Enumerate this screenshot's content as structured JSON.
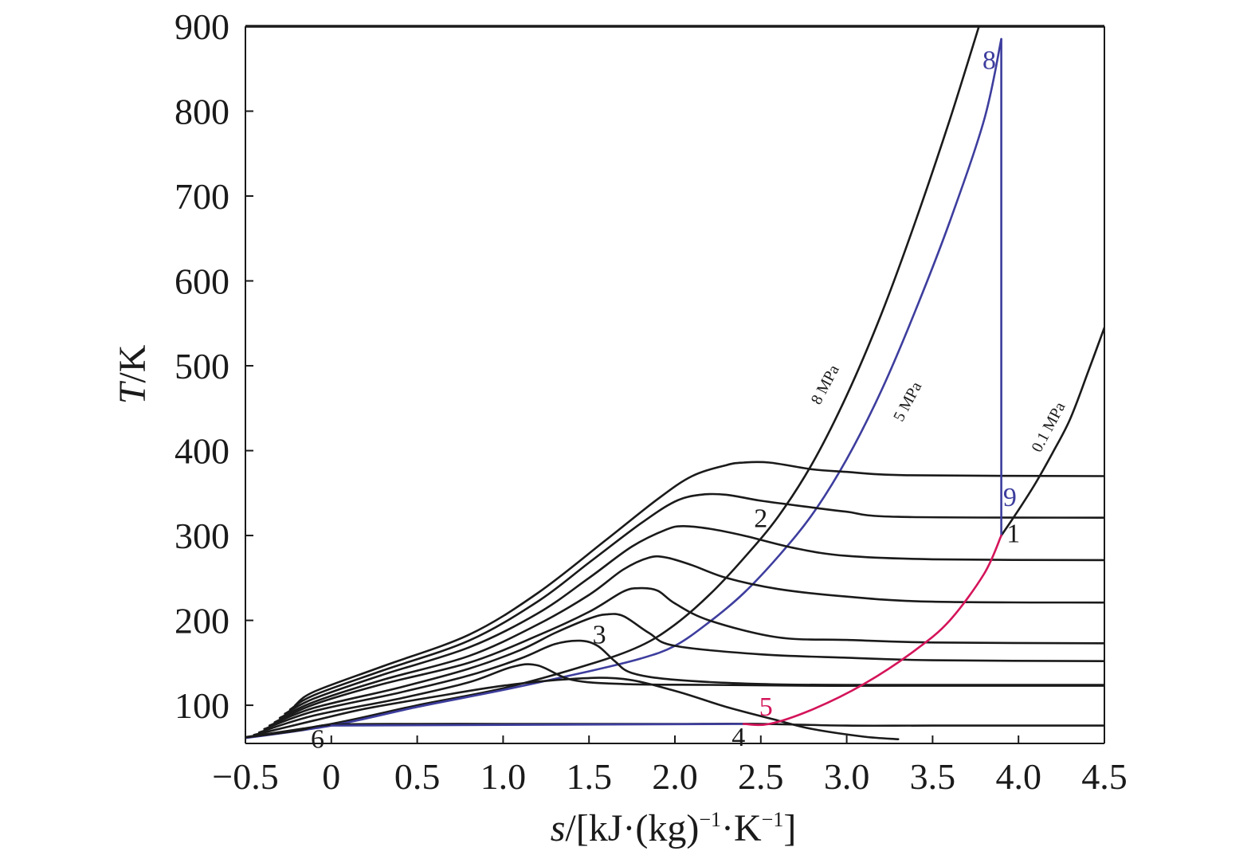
{
  "chart_data": {
    "type": "line",
    "xlabel": {
      "var": "s",
      "rest": "/[kJ·(kg)",
      "sup1": "−1",
      "mid": "·K",
      "sup2": "−1",
      "end": "]"
    },
    "ylabel": {
      "var": "T",
      "rest": "/K"
    },
    "xlim": [
      -0.5,
      4.5
    ],
    "ylim": [
      55,
      900
    ],
    "x_ticks": [
      -0.5,
      0,
      0.5,
      1.0,
      1.5,
      2.0,
      2.5,
      3.0,
      3.5,
      4.0,
      4.5
    ],
    "x_tick_labels": [
      "−0.5",
      "0",
      "0.5",
      "1.0",
      "1.5",
      "2.0",
      "2.5",
      "3.0",
      "3.5",
      "4.0",
      "4.5"
    ],
    "y_ticks": [
      100,
      200,
      300,
      400,
      500,
      600,
      700,
      800,
      900
    ],
    "y_tick_labels": [
      "100",
      "200",
      "300",
      "400",
      "500",
      "600",
      "700",
      "800",
      "900"
    ],
    "grid": false,
    "colors": {
      "axis": "#1a1a1a",
      "isotherm": "#1a1a1a",
      "cycle_blue": "#3d3d9e",
      "cycle_red": "#d4145a"
    },
    "series": [
      {
        "name": "8 MPa",
        "color": "#1a1a1a",
        "points": [
          [
            -0.55,
            61
          ],
          [
            0,
            78
          ],
          [
            0.5,
            100
          ],
          [
            1.0,
            120
          ],
          [
            1.5,
            148
          ],
          [
            1.8,
            170
          ],
          [
            2.0,
            195
          ],
          [
            2.2,
            230
          ],
          [
            2.4,
            273
          ],
          [
            2.6,
            322
          ],
          [
            2.8,
            385
          ],
          [
            3.0,
            465
          ],
          [
            3.2,
            560
          ],
          [
            3.4,
            670
          ],
          [
            3.6,
            790
          ],
          [
            3.77,
            900
          ]
        ]
      },
      {
        "name": "5 MPa",
        "color": "#3d3d9e",
        "points": [
          [
            -0.55,
            60
          ],
          [
            0,
            76
          ],
          [
            0.5,
            98
          ],
          [
            1.0,
            118
          ],
          [
            1.5,
            140
          ],
          [
            1.8,
            155
          ],
          [
            2.0,
            170
          ],
          [
            2.2,
            198
          ],
          [
            2.4,
            232
          ],
          [
            2.6,
            275
          ],
          [
            2.8,
            325
          ],
          [
            3.0,
            390
          ],
          [
            3.2,
            470
          ],
          [
            3.4,
            565
          ],
          [
            3.6,
            670
          ],
          [
            3.8,
            790
          ],
          [
            3.9,
            885
          ]
        ]
      },
      {
        "name": "0.1 MPa",
        "color": "#1a1a1a",
        "points": [
          [
            3.9,
            300
          ],
          [
            4.0,
            330
          ],
          [
            4.1,
            362
          ],
          [
            4.2,
            398
          ],
          [
            4.3,
            437
          ],
          [
            4.4,
            490
          ],
          [
            4.5,
            545
          ]
        ]
      },
      {
        "name": "",
        "color": "#1a1a1a",
        "points": [
          [
            -0.5,
            62
          ],
          [
            -0.2,
            70
          ],
          [
            0,
            77
          ],
          [
            0.5,
            78
          ],
          [
            1.0,
            78
          ],
          [
            1.5,
            78
          ],
          [
            2.0,
            78
          ],
          [
            2.5,
            78
          ],
          [
            3.0,
            76
          ],
          [
            3.5,
            76
          ],
          [
            4.5,
            76
          ]
        ]
      },
      {
        "name": "",
        "color": "#1a1a1a",
        "points": [
          [
            -0.45,
            65
          ],
          [
            -0.1,
            82
          ],
          [
            0.2,
            96
          ],
          [
            0.6,
            110
          ],
          [
            1.0,
            123
          ],
          [
            1.4,
            131
          ],
          [
            1.7,
            131
          ],
          [
            2.0,
            117
          ],
          [
            2.3,
            98
          ],
          [
            2.6,
            82
          ],
          [
            2.8,
            72
          ],
          [
            3.1,
            63
          ],
          [
            3.3,
            60
          ]
        ]
      },
      {
        "name": "",
        "color": "#1a1a1a",
        "points": [
          [
            -0.42,
            68
          ],
          [
            -0.1,
            88
          ],
          [
            0.4,
            108
          ],
          [
            0.8,
            127
          ],
          [
            1.05,
            145
          ],
          [
            1.2,
            147
          ],
          [
            1.4,
            130
          ],
          [
            1.7,
            125
          ],
          [
            2.2,
            124
          ],
          [
            2.8,
            123
          ],
          [
            3.5,
            123
          ],
          [
            4.5,
            123
          ]
        ]
      },
      {
        "name": "",
        "color": "#1a1a1a",
        "points": [
          [
            -0.39,
            72
          ],
          [
            -0.1,
            93
          ],
          [
            0.4,
            115
          ],
          [
            0.8,
            135
          ],
          [
            1.1,
            155
          ],
          [
            1.3,
            172
          ],
          [
            1.45,
            176
          ],
          [
            1.55,
            170
          ],
          [
            1.65,
            152
          ],
          [
            1.75,
            138
          ],
          [
            2.0,
            130
          ],
          [
            2.5,
            125
          ],
          [
            3.0,
            124
          ],
          [
            4.5,
            124
          ]
        ]
      },
      {
        "name": "",
        "color": "#1a1a1a",
        "points": [
          [
            -0.36,
            76
          ],
          [
            -0.1,
            97
          ],
          [
            0.4,
            121
          ],
          [
            0.8,
            143
          ],
          [
            1.1,
            165
          ],
          [
            1.3,
            185
          ],
          [
            1.5,
            202
          ],
          [
            1.6,
            207
          ],
          [
            1.7,
            205
          ],
          [
            1.85,
            185
          ],
          [
            2.0,
            170
          ],
          [
            2.5,
            160
          ],
          [
            3.0,
            156
          ],
          [
            3.5,
            153
          ],
          [
            4.5,
            152
          ]
        ]
      },
      {
        "name": "",
        "color": "#1a1a1a",
        "points": [
          [
            -0.33,
            80
          ],
          [
            -0.1,
            101
          ],
          [
            0.3,
            125
          ],
          [
            0.8,
            150
          ],
          [
            1.2,
            182
          ],
          [
            1.5,
            210
          ],
          [
            1.7,
            234
          ],
          [
            1.8,
            238
          ],
          [
            1.9,
            235
          ],
          [
            2.0,
            220
          ],
          [
            2.2,
            200
          ],
          [
            2.6,
            180
          ],
          [
            3.0,
            177
          ],
          [
            3.5,
            174
          ],
          [
            4.5,
            173
          ]
        ]
      },
      {
        "name": "",
        "color": "#1a1a1a",
        "points": [
          [
            -0.3,
            85
          ],
          [
            -0.1,
            104
          ],
          [
            0.3,
            130
          ],
          [
            0.8,
            158
          ],
          [
            1.2,
            195
          ],
          [
            1.5,
            230
          ],
          [
            1.7,
            260
          ],
          [
            1.85,
            274
          ],
          [
            1.95,
            274
          ],
          [
            2.1,
            265
          ],
          [
            2.3,
            250
          ],
          [
            2.6,
            237
          ],
          [
            3.0,
            228
          ],
          [
            3.5,
            222
          ],
          [
            4.5,
            221
          ]
        ]
      },
      {
        "name": "",
        "color": "#1a1a1a",
        "points": [
          [
            -0.27,
            90
          ],
          [
            -0.1,
            108
          ],
          [
            0.3,
            136
          ],
          [
            0.8,
            168
          ],
          [
            1.2,
            208
          ],
          [
            1.5,
            250
          ],
          [
            1.75,
            287
          ],
          [
            1.95,
            307
          ],
          [
            2.05,
            311
          ],
          [
            2.2,
            308
          ],
          [
            2.4,
            300
          ],
          [
            2.7,
            285
          ],
          [
            3.0,
            276
          ],
          [
            3.5,
            272
          ],
          [
            4.5,
            271
          ]
        ]
      },
      {
        "name": "",
        "color": "#1a1a1a",
        "points": [
          [
            -0.24,
            95
          ],
          [
            -0.1,
            112
          ],
          [
            0.3,
            141
          ],
          [
            0.8,
            176
          ],
          [
            1.2,
            222
          ],
          [
            1.5,
            268
          ],
          [
            1.8,
            314
          ],
          [
            2.0,
            340
          ],
          [
            2.15,
            348
          ],
          [
            2.3,
            348
          ],
          [
            2.5,
            341
          ],
          [
            2.8,
            333
          ],
          [
            3.0,
            328
          ],
          [
            3.3,
            322
          ],
          [
            4.5,
            321
          ]
        ]
      },
      {
        "name": "",
        "color": "#1a1a1a",
        "points": [
          [
            -0.21,
            100
          ],
          [
            -0.1,
            116
          ],
          [
            0.3,
            146
          ],
          [
            0.8,
            183
          ],
          [
            1.2,
            232
          ],
          [
            1.6,
            295
          ],
          [
            1.9,
            343
          ],
          [
            2.1,
            370
          ],
          [
            2.3,
            383
          ],
          [
            2.4,
            386
          ],
          [
            2.55,
            386
          ],
          [
            2.8,
            378
          ],
          [
            3.0,
            375
          ],
          [
            3.35,
            371
          ],
          [
            4.5,
            370
          ]
        ]
      },
      {
        "name": "",
        "color": "#3d3d9e",
        "points": [
          [
            0,
            76
          ],
          [
            2.4,
            78
          ]
        ]
      },
      {
        "name": "",
        "color": "#3d3d9e",
        "points": [
          [
            3.9,
            885
          ],
          [
            3.9,
            300
          ]
        ]
      },
      {
        "name": "",
        "color": "#d4145a",
        "points": [
          [
            2.4,
            78
          ],
          [
            2.55,
            78
          ],
          [
            2.8,
            95
          ],
          [
            3.1,
            125
          ],
          [
            3.4,
            165
          ],
          [
            3.6,
            200
          ],
          [
            3.8,
            255
          ],
          [
            3.9,
            300
          ]
        ]
      }
    ],
    "annotations": [
      {
        "text": "8 MPa",
        "x": 2.9,
        "y": 475,
        "rotate": -62,
        "kind": "curve"
      },
      {
        "text": "5 MPa",
        "x": 3.38,
        "y": 455,
        "rotate": -62,
        "kind": "curve"
      },
      {
        "text": "0.1 MPa",
        "x": 4.2,
        "y": 425,
        "rotate": -62,
        "kind": "curve"
      },
      {
        "text": "1",
        "x": 3.97,
        "y": 292,
        "color": "#1a1a1a",
        "kind": "point"
      },
      {
        "text": "2",
        "x": 2.5,
        "y": 310,
        "color": "#1a1a1a",
        "kind": "point"
      },
      {
        "text": "3",
        "x": 1.56,
        "y": 173,
        "color": "#1a1a1a",
        "kind": "point"
      },
      {
        "text": "4",
        "x": 2.37,
        "y": 52,
        "color": "#1a1a1a",
        "kind": "point"
      },
      {
        "text": "5",
        "x": 2.53,
        "y": 88,
        "color": "#d4145a",
        "kind": "point"
      },
      {
        "text": "6",
        "x": -0.08,
        "y": 50,
        "color": "#1a1a1a",
        "kind": "point"
      },
      {
        "text": "8",
        "x": 3.83,
        "y": 850,
        "color": "#3d3d9e",
        "kind": "point"
      },
      {
        "text": "9",
        "x": 3.95,
        "y": 335,
        "color": "#3d3d9e",
        "kind": "point"
      }
    ]
  }
}
